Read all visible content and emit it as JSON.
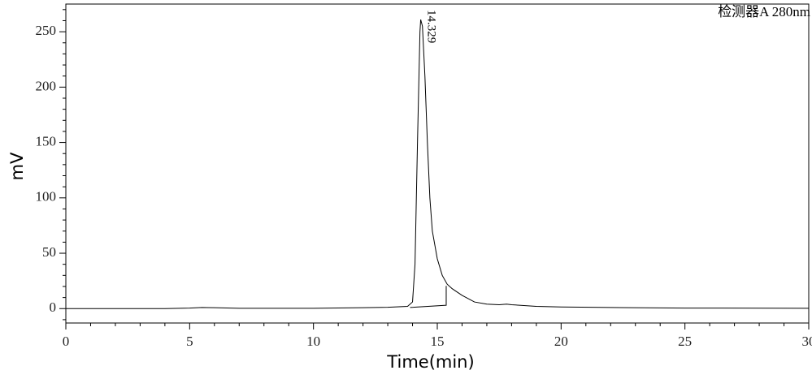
{
  "chart_data": {
    "type": "line",
    "xlabel": "Time(min)",
    "ylabel": "mV",
    "detector_label": "检测器A 280nm",
    "peak_label": "14.329",
    "x": [
      0,
      1,
      4,
      5,
      5.5,
      6,
      7,
      10,
      12,
      13,
      13.8,
      14.0,
      14.1,
      14.2,
      14.3,
      14.33,
      14.4,
      14.5,
      14.6,
      14.7,
      14.8,
      15.0,
      15.2,
      15.4,
      15.6,
      16.0,
      16.5,
      17.0,
      17.5,
      17.8,
      18.0,
      19,
      20,
      22,
      25,
      30
    ],
    "series": [
      {
        "color": "#000000",
        "values": [
          0,
          0,
          0,
          0.5,
          1,
          0.8,
          0.3,
          0.3,
          0.8,
          1.2,
          2,
          6,
          40,
          150,
          250,
          261,
          255,
          210,
          150,
          100,
          70,
          45,
          30,
          22,
          18,
          12,
          6,
          4,
          3.5,
          4,
          3.5,
          2,
          1.5,
          1,
          0.5,
          0.3
        ]
      }
    ],
    "integration_baseline": {
      "color": "#000000",
      "x": [
        13.9,
        15.36,
        15.36
      ],
      "values": [
        1,
        3,
        20.5
      ]
    },
    "xlim": [
      0,
      30
    ],
    "ylim": [
      -13,
      275
    ],
    "xticks": [
      0,
      5,
      10,
      15,
      20,
      25,
      30
    ],
    "yticks": [
      0,
      50,
      100,
      150,
      200,
      250
    ],
    "xminorticks": [
      1,
      2,
      3,
      4,
      6,
      7,
      8,
      9,
      11,
      12,
      13,
      14,
      16,
      17,
      18,
      19,
      21,
      22,
      23,
      24,
      26,
      27,
      28,
      29
    ],
    "yminorticks": [
      -10,
      10,
      20,
      30,
      40,
      60,
      70,
      80,
      90,
      110,
      120,
      130,
      140,
      160,
      170,
      180,
      190,
      210,
      220,
      230,
      240,
      260,
      270
    ]
  }
}
